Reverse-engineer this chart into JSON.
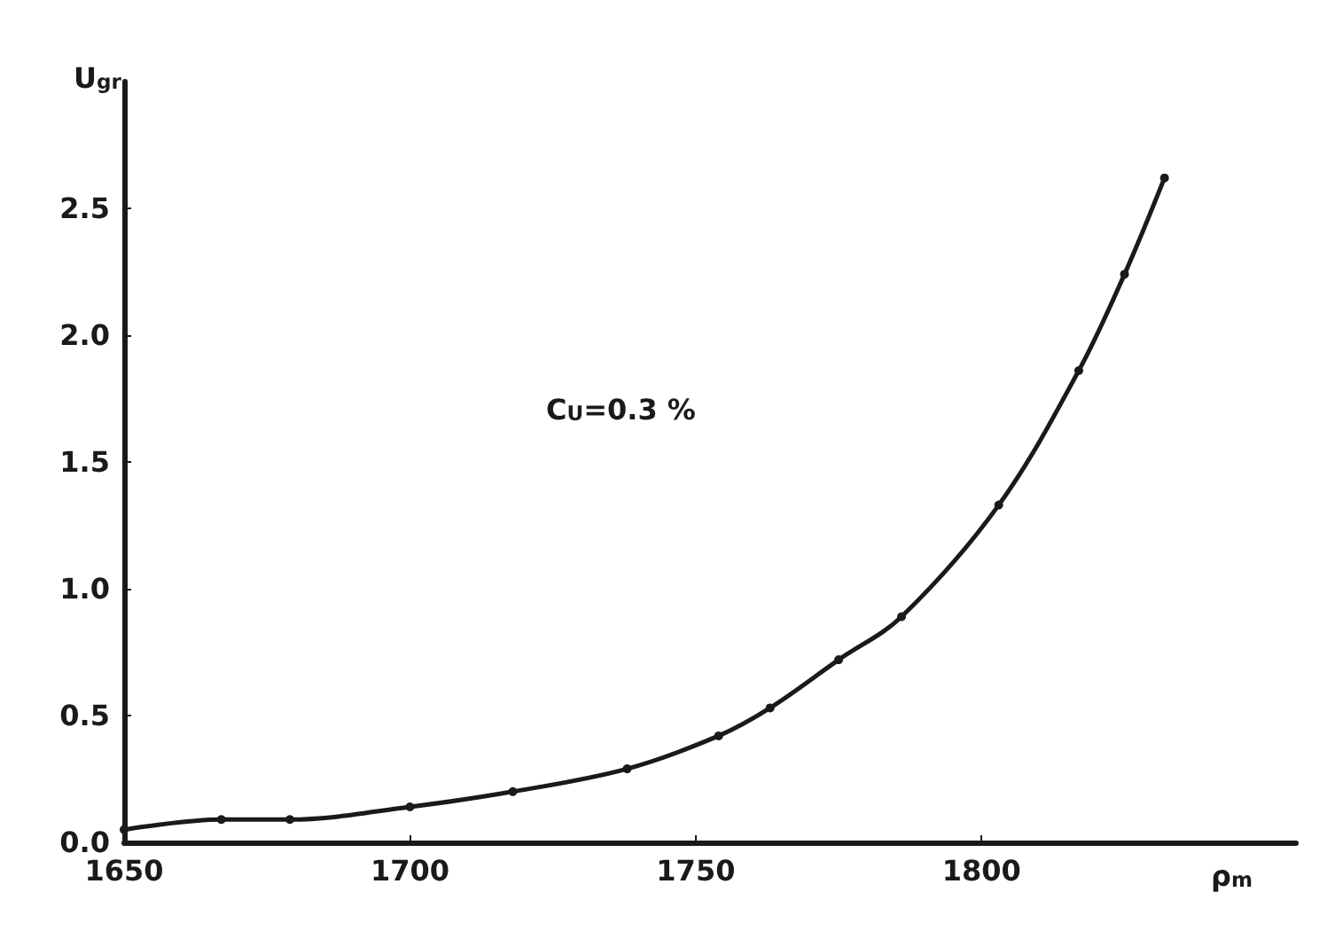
{
  "chart_data": {
    "type": "line",
    "xlabel": "ρ$_{m}$",
    "ylabel": "U$_{gr}$",
    "annotations": [
      "C$_{U}$=0.3 %"
    ],
    "x": [
      1650,
      1667,
      1679,
      1700,
      1718,
      1738,
      1754,
      1763,
      1775,
      1786,
      1803,
      1817,
      1825,
      1832
    ],
    "series": [
      {
        "color": "#1a1a1a",
        "values": [
          0.05,
          0.09,
          0.09,
          0.14,
          0.2,
          0.29,
          0.42,
          0.53,
          0.72,
          0.89,
          1.33,
          1.86,
          2.24,
          2.62
        ]
      }
    ],
    "xlim": [
      1650,
      1855
    ],
    "ylim": [
      0,
      3
    ],
    "xticks": [
      1650,
      1700,
      1750,
      1800
    ],
    "yticks": [
      {
        "value": 0,
        "label": "0.0"
      },
      {
        "value": 0.5,
        "label": "0.5"
      },
      {
        "value": 1,
        "label": "1.0"
      },
      {
        "value": 1.5,
        "label": "1.5"
      },
      {
        "value": 2,
        "label": "2.0"
      },
      {
        "value": 2.5,
        "label": "2.5"
      }
    ],
    "grid": false,
    "marker": "circle",
    "line_style": "solid"
  }
}
